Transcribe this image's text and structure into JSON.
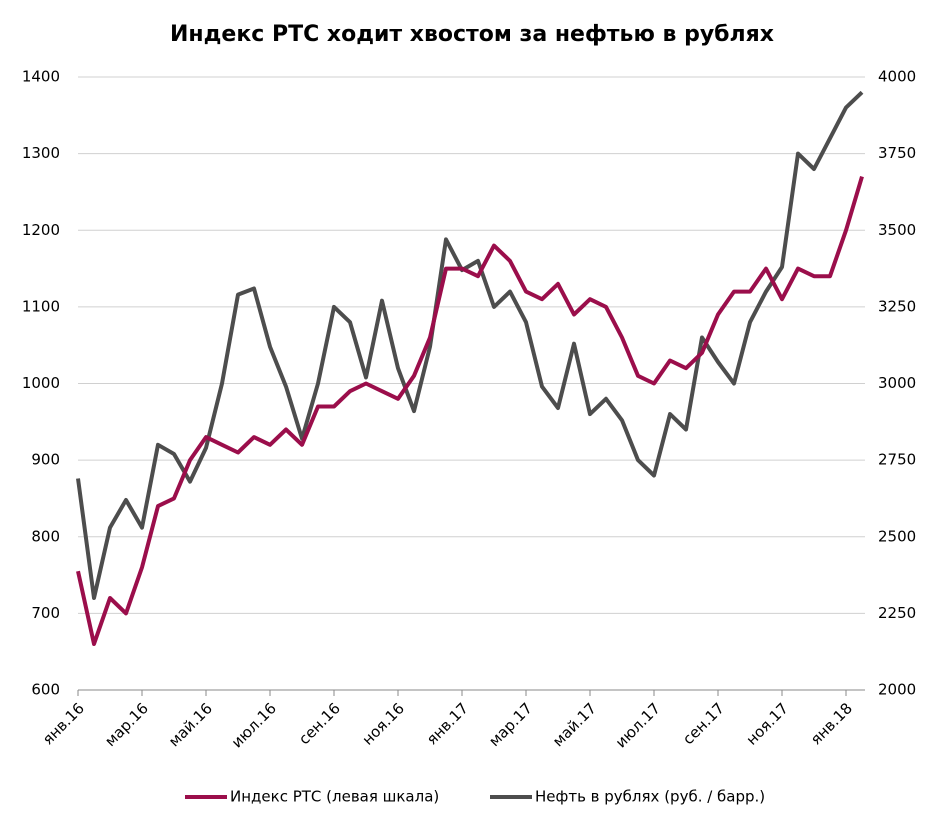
{
  "chart_data": {
    "type": "line",
    "title": "Индекс РТС ходит хвостом за нефтью в рублях",
    "categories": [
      "янв.16",
      null,
      null,
      null,
      "мар.16",
      null,
      null,
      null,
      "май.16",
      null,
      null,
      null,
      "июл.16",
      null,
      null,
      null,
      "сен.16",
      null,
      null,
      null,
      "ноя.16",
      null,
      null,
      null,
      "янв.17",
      null,
      null,
      null,
      "мар.17",
      null,
      null,
      null,
      "май.17",
      null,
      null,
      null,
      "июл.17",
      null,
      null,
      null,
      "сен.17",
      null,
      null,
      null,
      "ноя.17",
      null,
      null,
      null,
      "янв.18",
      null
    ],
    "series": [
      {
        "name": "Индекс РТС (левая шкала)",
        "color": "#9b0e4b",
        "values": [
          755,
          660,
          720,
          700,
          760,
          840,
          850,
          900,
          930,
          920,
          910,
          930,
          920,
          940,
          920,
          970,
          970,
          990,
          1000,
          990,
          980,
          1010,
          1060,
          1150,
          1150,
          1140,
          1180,
          1160,
          1120,
          1110,
          1130,
          1090,
          1110,
          1100,
          1060,
          1010,
          1000,
          1030,
          1020,
          1040,
          1090,
          1120,
          1120,
          1150,
          1110,
          1150,
          1140,
          1140,
          1200,
          1270
        ]
      },
      {
        "name": "Нефть в рублях (руб. / барр.)",
        "color": "#4d4d4d",
        "axis": "y2",
        "values": [
          2690,
          2300,
          2530,
          2620,
          2530,
          2800,
          2770,
          2680,
          2790,
          3000,
          3290,
          3310,
          3120,
          2990,
          2820,
          3000,
          3250,
          3200,
          3020,
          3270,
          3050,
          2910,
          3120,
          3470,
          3370,
          3400,
          3250,
          3300,
          3200,
          2990,
          2920,
          3130,
          2900,
          2950,
          2880,
          2750,
          2700,
          2900,
          2850,
          3150,
          3070,
          3000,
          3200,
          3300,
          3380,
          3750,
          3700,
          3800,
          3900,
          3950
        ]
      }
    ],
    "ylim": [
      600,
      1400
    ],
    "yticks": [
      600,
      700,
      800,
      900,
      1000,
      1100,
      1200,
      1300,
      1400
    ],
    "y2lim": [
      2000,
      4000
    ],
    "y2ticks": [
      2000,
      2250,
      2500,
      2750,
      3000,
      3250,
      3500,
      3750,
      4000
    ],
    "grid": true,
    "legend": "bottom"
  }
}
